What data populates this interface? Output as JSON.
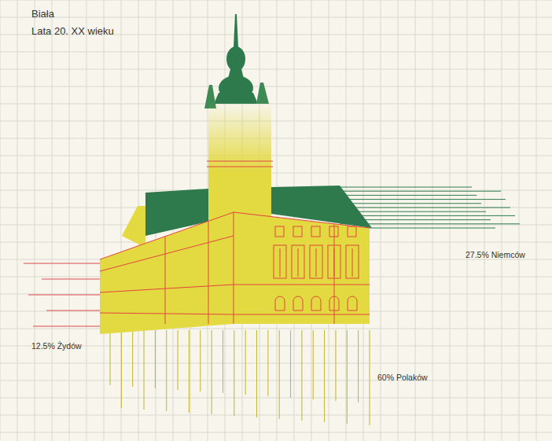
{
  "chart_data": {
    "type": "infographic",
    "title": "Biała",
    "subtitle": "Lata 20. XX wieku",
    "values": [
      27.5,
      12.5,
      60
    ],
    "value_labels": [
      "27.5% Niemców",
      "12.5% Żydów",
      "60% Polaków"
    ],
    "colors": [
      "#2f7a4c",
      "#d94a4f",
      "#bdb52e"
    ]
  }
}
